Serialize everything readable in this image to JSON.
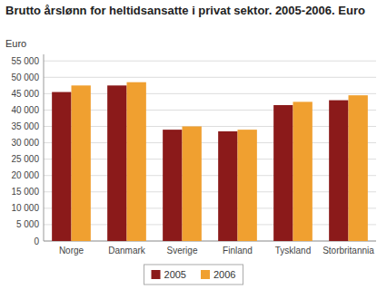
{
  "chart_data": {
    "type": "bar",
    "title": "Brutto årslønn for heltidsansatte i privat sektor. 2005-2006. Euro",
    "y_label": "Euro",
    "categories": [
      "Norge",
      "Danmark",
      "Sverige",
      "Finland",
      "Tyskland",
      "Storbritannia"
    ],
    "series": [
      {
        "name": "2005",
        "color": "#8B1A1A",
        "values": [
          45500,
          47500,
          34000,
          33500,
          41500,
          43000
        ]
      },
      {
        "name": "2006",
        "color": "#F0A030",
        "values": [
          47500,
          48500,
          35000,
          34000,
          42500,
          44500
        ]
      }
    ],
    "ylim": [
      0,
      57000
    ],
    "yticks": [
      0,
      {
        "value": 5000,
        "label": "5 000"
      },
      {
        "value": 10000,
        "label": "10 000"
      },
      {
        "value": 15000,
        "label": "15 000"
      },
      {
        "value": 20000,
        "label": "20 000"
      },
      {
        "value": 25000,
        "label": "25 000"
      },
      {
        "value": 30000,
        "label": "30 000"
      },
      {
        "value": 35000,
        "label": "35 000"
      },
      {
        "value": 40000,
        "label": "40 000"
      },
      {
        "value": 45000,
        "label": "45 000"
      },
      {
        "value": 50000,
        "label": "50 000"
      },
      {
        "value": 55000,
        "label": "55 000"
      }
    ],
    "grid": true,
    "legend": "bottom"
  }
}
